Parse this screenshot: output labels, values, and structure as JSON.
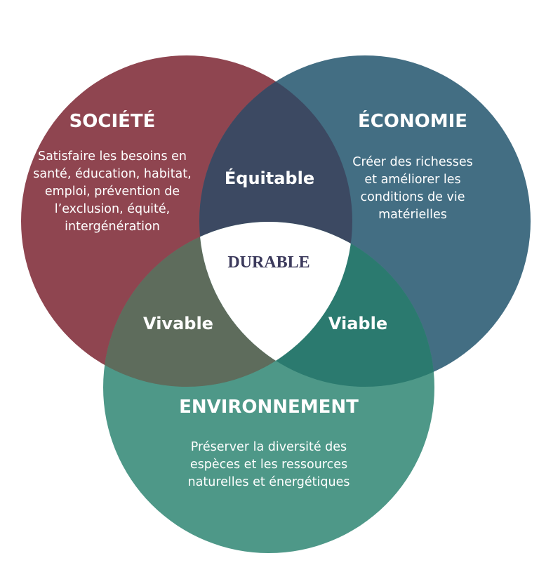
{
  "colors": {
    "societe": "#8f4550",
    "economie": "#436e83",
    "environnement": "#4e9888",
    "equitable": "#3c4962",
    "viable": "#2b7a6f",
    "vivable": "#5e6c5c",
    "durable_bg": "#ffffff",
    "durable_text": "#3c3a5c"
  },
  "societe": {
    "title": "SOCIÉTÉ",
    "lines": [
      "Satisfaire les besoins en",
      "santé, éducation, habitat,",
      "emploi, prévention de",
      "l’exclusion, équité,",
      "intergénération"
    ]
  },
  "economie": {
    "title": "ÉCONOMIE",
    "lines": [
      "Créer des richesses",
      "et améliorer les",
      "conditions de vie",
      "matérielles"
    ]
  },
  "environnement": {
    "title": "ENVIRONNEMENT",
    "lines": [
      "Préserver la diversité des",
      "espèces et les ressources",
      "naturelles et énergétiques"
    ]
  },
  "intersections": {
    "equitable": "Équitable",
    "vivable": "Vivable",
    "viable": "Viable",
    "durable": "DURABLE"
  }
}
